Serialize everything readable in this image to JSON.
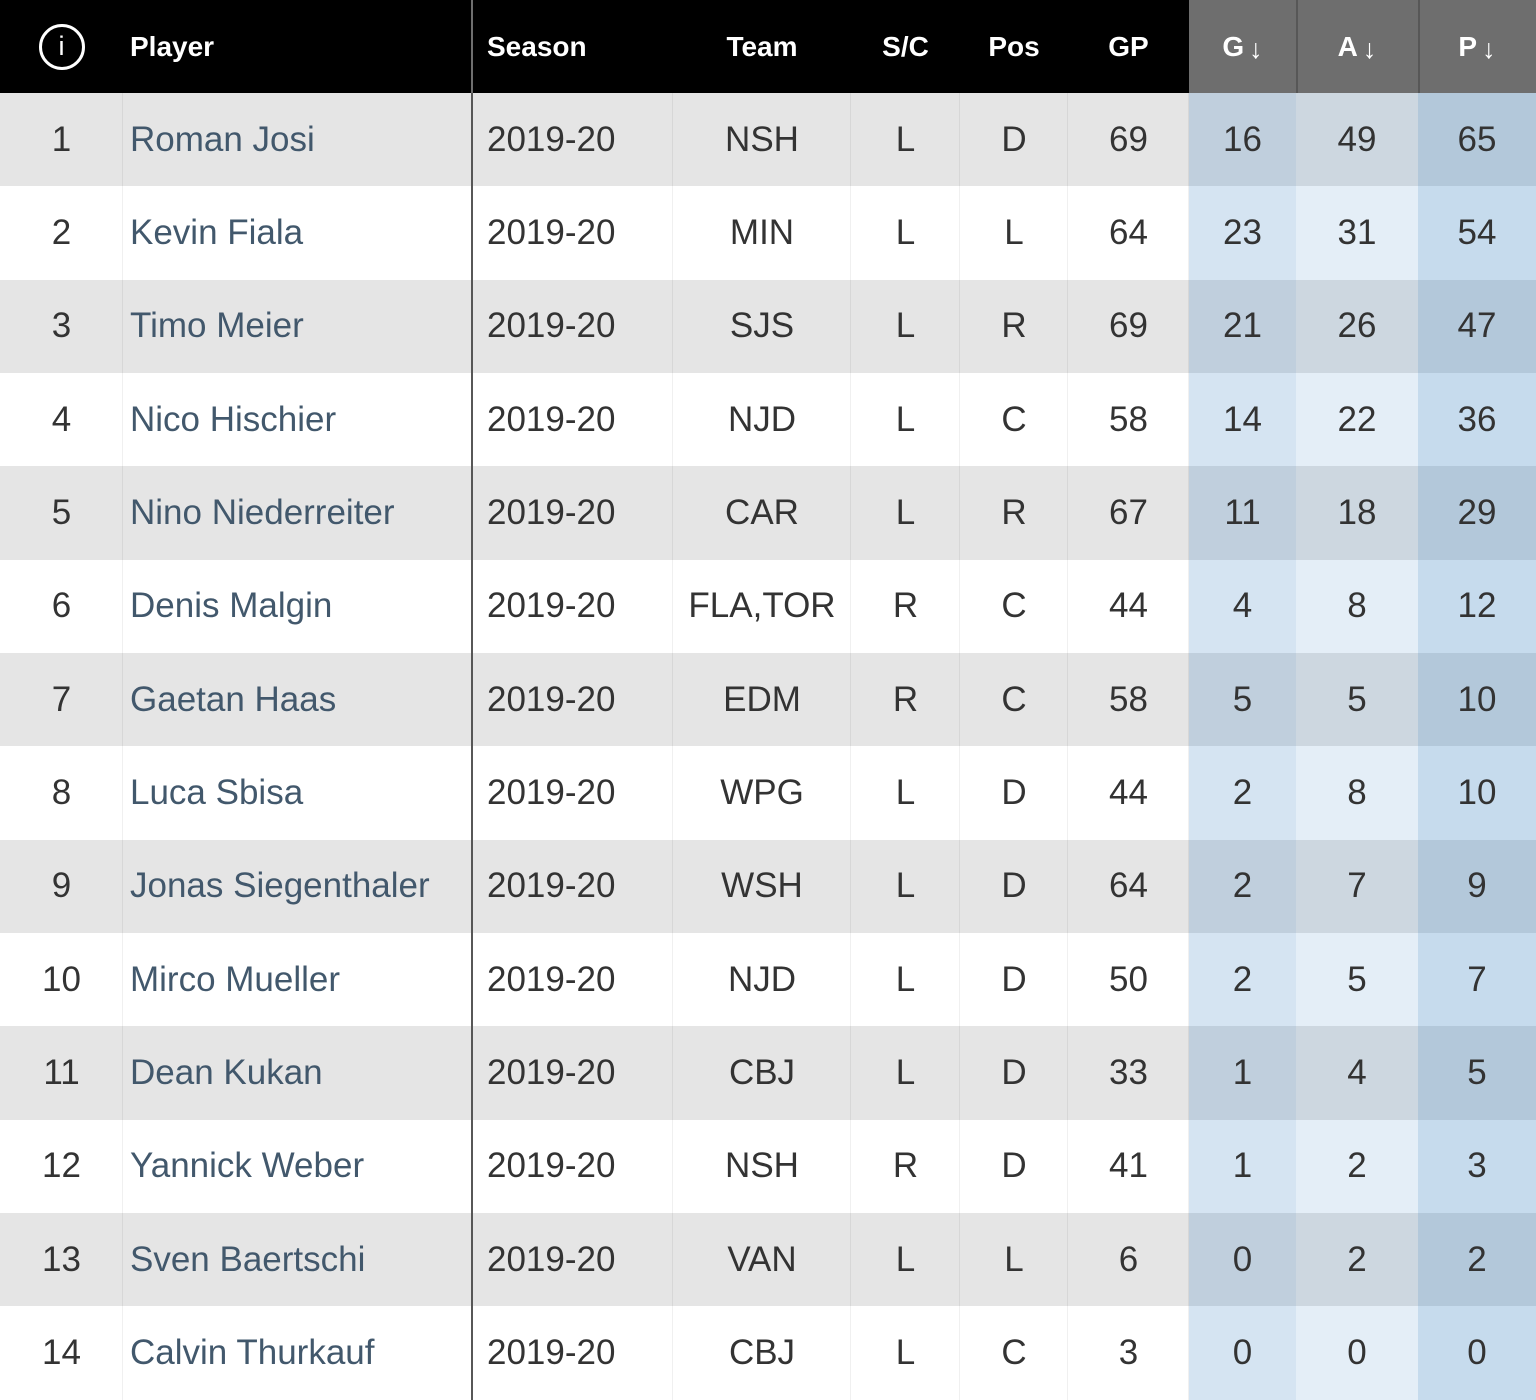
{
  "header": {
    "info_icon_glyph": "i",
    "columns": [
      {
        "key": "rank",
        "label": ""
      },
      {
        "key": "player",
        "label": "Player"
      },
      {
        "key": "season",
        "label": "Season"
      },
      {
        "key": "team",
        "label": "Team"
      },
      {
        "key": "shoots",
        "label": "S/C"
      },
      {
        "key": "pos",
        "label": "Pos"
      },
      {
        "key": "gp",
        "label": "GP"
      },
      {
        "key": "g",
        "label": "G",
        "sort_arrow": "↓"
      },
      {
        "key": "a",
        "label": "A",
        "sort_arrow": "↓"
      },
      {
        "key": "p",
        "label": "P",
        "sort_arrow": "↓"
      }
    ]
  },
  "colors": {
    "header_bg": "#000000",
    "header_text": "#ffffff",
    "sorted_header_bg": "#6e6e6e",
    "row_odd_bg": "#e5e5e5",
    "row_even_bg": "#ffffff",
    "text": "#333333",
    "player_link": "#42586c",
    "sorted_col_tint": "#2d7abe",
    "divider": "#575757"
  },
  "table": {
    "rows": [
      {
        "rank": "1",
        "player": "Roman Josi",
        "season": "2019-20",
        "team": "NSH",
        "shoots": "L",
        "pos": "D",
        "gp": "69",
        "g": "16",
        "a": "49",
        "p": "65"
      },
      {
        "rank": "2",
        "player": "Kevin Fiala",
        "season": "2019-20",
        "team": "MIN",
        "shoots": "L",
        "pos": "L",
        "gp": "64",
        "g": "23",
        "a": "31",
        "p": "54"
      },
      {
        "rank": "3",
        "player": "Timo Meier",
        "season": "2019-20",
        "team": "SJS",
        "shoots": "L",
        "pos": "R",
        "gp": "69",
        "g": "21",
        "a": "26",
        "p": "47"
      },
      {
        "rank": "4",
        "player": "Nico Hischier",
        "season": "2019-20",
        "team": "NJD",
        "shoots": "L",
        "pos": "C",
        "gp": "58",
        "g": "14",
        "a": "22",
        "p": "36"
      },
      {
        "rank": "5",
        "player": "Nino Niederreiter",
        "season": "2019-20",
        "team": "CAR",
        "shoots": "L",
        "pos": "R",
        "gp": "67",
        "g": "11",
        "a": "18",
        "p": "29"
      },
      {
        "rank": "6",
        "player": "Denis Malgin",
        "season": "2019-20",
        "team": "FLA,TOR",
        "shoots": "R",
        "pos": "C",
        "gp": "44",
        "g": "4",
        "a": "8",
        "p": "12"
      },
      {
        "rank": "7",
        "player": "Gaetan Haas",
        "season": "2019-20",
        "team": "EDM",
        "shoots": "R",
        "pos": "C",
        "gp": "58",
        "g": "5",
        "a": "5",
        "p": "10"
      },
      {
        "rank": "8",
        "player": "Luca Sbisa",
        "season": "2019-20",
        "team": "WPG",
        "shoots": "L",
        "pos": "D",
        "gp": "44",
        "g": "2",
        "a": "8",
        "p": "10"
      },
      {
        "rank": "9",
        "player": "Jonas Siegenthaler",
        "season": "2019-20",
        "team": "WSH",
        "shoots": "L",
        "pos": "D",
        "gp": "64",
        "g": "2",
        "a": "7",
        "p": "9"
      },
      {
        "rank": "10",
        "player": "Mirco Mueller",
        "season": "2019-20",
        "team": "NJD",
        "shoots": "L",
        "pos": "D",
        "gp": "50",
        "g": "2",
        "a": "5",
        "p": "7"
      },
      {
        "rank": "11",
        "player": "Dean Kukan",
        "season": "2019-20",
        "team": "CBJ",
        "shoots": "L",
        "pos": "D",
        "gp": "33",
        "g": "1",
        "a": "4",
        "p": "5"
      },
      {
        "rank": "12",
        "player": "Yannick Weber",
        "season": "2019-20",
        "team": "NSH",
        "shoots": "R",
        "pos": "D",
        "gp": "41",
        "g": "1",
        "a": "2",
        "p": "3"
      },
      {
        "rank": "13",
        "player": "Sven Baertschi",
        "season": "2019-20",
        "team": "VAN",
        "shoots": "L",
        "pos": "L",
        "gp": "6",
        "g": "0",
        "a": "2",
        "p": "2"
      },
      {
        "rank": "14",
        "player": "Calvin Thurkauf",
        "season": "2019-20",
        "team": "CBJ",
        "shoots": "L",
        "pos": "C",
        "gp": "3",
        "g": "0",
        "a": "0",
        "p": "0"
      }
    ]
  }
}
